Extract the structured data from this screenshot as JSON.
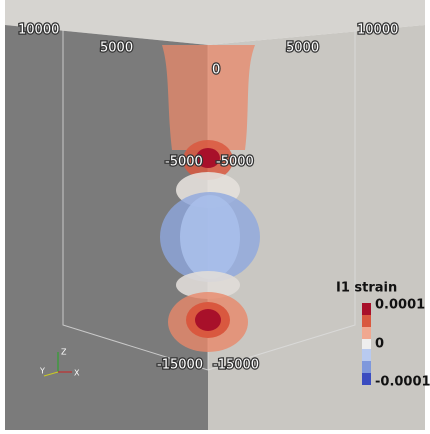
{
  "axis_labels": {
    "top_left_outer": "10000",
    "top_left_inner": "5000",
    "top_center": "0",
    "top_right_inner": "5000",
    "top_right_outer": "10000",
    "middle_left": "-5000",
    "middle_right": "-5000",
    "bottom_left": "-15000",
    "bottom_right": "-15000"
  },
  "legend": {
    "title": "I1 strain",
    "labels": [
      "0.0001",
      "0",
      "-0.0001"
    ]
  },
  "orientation_axes": {
    "z": "Z",
    "y": "Y",
    "x": "X"
  }
}
